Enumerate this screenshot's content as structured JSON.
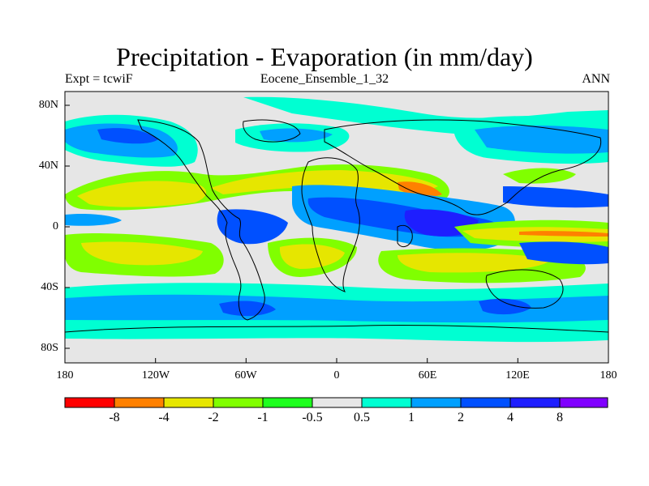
{
  "map": {
    "title": "Precipitation - Evaporation (in mm/day)",
    "left_label": "Expt = tcwiF",
    "center_label": "Eocene_Ensemble_1_32",
    "right_label": "ANN",
    "lat_labels": [
      "80N",
      "40N",
      "0",
      "40S",
      "80S"
    ],
    "lon_labels": [
      "180",
      "120W",
      "60W",
      "0",
      "60E",
      "120E",
      "180"
    ]
  },
  "colorbar": {
    "colors": [
      "#ff0000",
      "#ff8000",
      "#e6e600",
      "#80ff00",
      "#1eff1e",
      "#e6e6e6",
      "#00ffd2",
      "#00a0ff",
      "#0050ff",
      "#1e1eff",
      "#8000ff"
    ],
    "labels": [
      "-8",
      "-4",
      "-2",
      "-1",
      "-0.5",
      "0.5",
      "1",
      "2",
      "4",
      "8"
    ]
  },
  "chart_data": {
    "type": "heatmap",
    "title": "Precipitation - Evaporation (in mm/day)",
    "xlabel": "",
    "ylabel": "",
    "xlim": [
      -180,
      180
    ],
    "ylim": [
      -90,
      90
    ],
    "x_ticks": [
      "180",
      "120W",
      "60W",
      "0",
      "60E",
      "120E",
      "180"
    ],
    "y_ticks": [
      "80N",
      "40N",
      "0",
      "40S",
      "80S"
    ],
    "levels": [
      -8,
      -4,
      -2,
      -1,
      -0.5,
      0.5,
      1,
      2,
      4,
      8
    ],
    "units": "mm/day"
  }
}
